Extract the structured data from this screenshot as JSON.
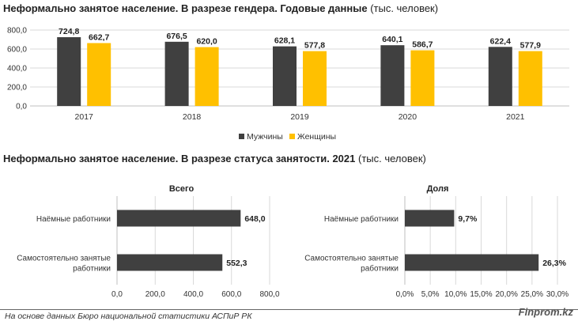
{
  "top_title": {
    "bold": "Неформально занятое население. В разрезе гендера. Годовые данные",
    "unit": "(тыс. человек)"
  },
  "bottom_title": {
    "bold": "Неформально занятое население. В разрезе статуса занятости. 2021",
    "unit": "(тыс. человек)"
  },
  "footer": {
    "source": "На основе данных Бюро национальной статистики АСПиР РК",
    "brand": "Finprom.kz"
  },
  "colors": {
    "men": "#404040",
    "women": "#ffc000",
    "bars": "#404040",
    "grid": "#d9d9d9",
    "axis": "#bfbfbf"
  },
  "chart_data": [
    {
      "type": "bar",
      "title": "Неформально занятое население. В разрезе гендера. Годовые данные (тыс. человек)",
      "categories": [
        "2017",
        "2018",
        "2019",
        "2020",
        "2021"
      ],
      "series": [
        {
          "name": "Мужчины",
          "values": [
            724.8,
            676.5,
            628.1,
            640.1,
            622.4
          ],
          "labels": [
            "724,8",
            "676,5",
            "628,1",
            "640,1",
            "622,4"
          ]
        },
        {
          "name": "Женщины",
          "values": [
            662.7,
            620.0,
            577.8,
            586.7,
            577.9
          ],
          "labels": [
            "662,7",
            "620,0",
            "577,8",
            "586,7",
            "577,9"
          ]
        }
      ],
      "ylim": [
        0,
        800
      ],
      "yticks": [
        "0,0",
        "200,0",
        "400,0",
        "600,0",
        "800,0"
      ],
      "legend": "bottom-center",
      "grid": true
    },
    {
      "type": "bar",
      "orientation": "horizontal",
      "subtitle": "Всего",
      "categories": [
        "Наёмные работники",
        "Самостоятельно занятые работники"
      ],
      "category_lines": [
        [
          "Наёмные работники"
        ],
        [
          "Самостоятельно занятые",
          "работники"
        ]
      ],
      "values": [
        648.0,
        552.3
      ],
      "labels": [
        "648,0",
        "552,3"
      ],
      "xlim": [
        0,
        800
      ],
      "xticks": [
        "0,0",
        "200,0",
        "400,0",
        "600,0",
        "800,0"
      ],
      "grid": true
    },
    {
      "type": "bar",
      "orientation": "horizontal",
      "subtitle": "Доля",
      "categories": [
        "Наёмные работники",
        "Самостоятельно занятые работники"
      ],
      "category_lines": [
        [
          "Наёмные работники"
        ],
        [
          "Самостоятельно занятые",
          "работники"
        ]
      ],
      "values": [
        9.7,
        26.3
      ],
      "labels": [
        "9,7%",
        "26,3%"
      ],
      "xlim": [
        0,
        30
      ],
      "xticks": [
        "0,0%",
        "5,0%",
        "10,0%",
        "15,0%",
        "20,0%",
        "25,0%",
        "30,0%"
      ],
      "grid": true
    }
  ]
}
